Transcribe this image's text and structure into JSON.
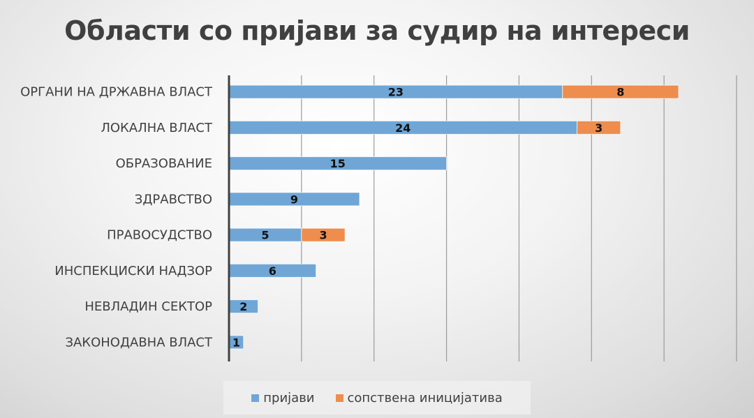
{
  "chart_data": {
    "type": "bar",
    "orientation": "horizontal",
    "stacked": true,
    "title": "Области со пријави за судир на интереси",
    "xlabel": "",
    "ylabel": "",
    "xlim": [
      0,
      35
    ],
    "x_grid_step": 5,
    "grid": true,
    "tick_labels_shown": false,
    "legend_position": "bottom",
    "categories": [
      "ОРГАНИ НА ДРЖАВНА ВЛАСТ",
      "ЛОКАЛНА ВЛАСТ",
      "ОБРАЗОВАНИЕ",
      "ЗДРАВСТВО",
      "ПРАВОСУДСТВО",
      "ИНСПЕКЦИСКИ НАДЗОР",
      "НЕВЛАДИН СЕКТОР",
      "ЗАКОНОДАВНА ВЛАСТ"
    ],
    "series": [
      {
        "name": "пријави",
        "color": "#6fa6d6",
        "values": [
          23,
          24,
          15,
          9,
          5,
          6,
          2,
          1
        ]
      },
      {
        "name": "сопствена иницијатива",
        "color": "#ee8d4d",
        "values": [
          8,
          3,
          0,
          0,
          3,
          0,
          0,
          0
        ]
      }
    ]
  }
}
